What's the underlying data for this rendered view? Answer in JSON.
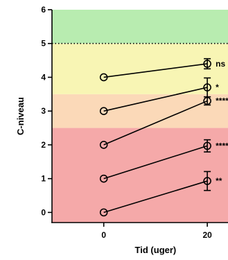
{
  "chart_data": {
    "type": "line",
    "xlabel": "Tid  (uger)",
    "ylabel": "C-niveau",
    "x": [
      0,
      20
    ],
    "x_ticks": [
      "0",
      "20"
    ],
    "y_ticks": [
      "0",
      "1",
      "2",
      "3",
      "4",
      "5",
      "6"
    ],
    "ylim": [
      -0.3,
      6
    ],
    "xlim": [
      -10,
      24
    ],
    "reference_line": {
      "y": 5,
      "style": "dotted"
    },
    "bands": [
      {
        "from": -0.3,
        "to": 2.5,
        "color": "#f5a9a9"
      },
      {
        "from": 2.5,
        "to": 3.5,
        "color": "#fbd9b8"
      },
      {
        "from": 3.5,
        "to": 5.0,
        "color": "#f8f5b4"
      },
      {
        "from": 5.0,
        "to": 6.0,
        "color": "#b8ecb0"
      }
    ],
    "series": [
      {
        "values": [
          4,
          4.4
        ],
        "error": [
          0,
          0.15
        ],
        "significance": "ns"
      },
      {
        "values": [
          3,
          3.7
        ],
        "error": [
          0,
          0.28
        ],
        "significance": "*"
      },
      {
        "values": [
          2,
          3.3
        ],
        "error": [
          0,
          0.12
        ],
        "significance": "****"
      },
      {
        "values": [
          1,
          1.97
        ],
        "error": [
          0,
          0.18
        ],
        "significance": "****"
      },
      {
        "values": [
          0,
          0.93
        ],
        "error": [
          0,
          0.28
        ],
        "significance": "**"
      }
    ],
    "grid": false,
    "legend": "none"
  }
}
